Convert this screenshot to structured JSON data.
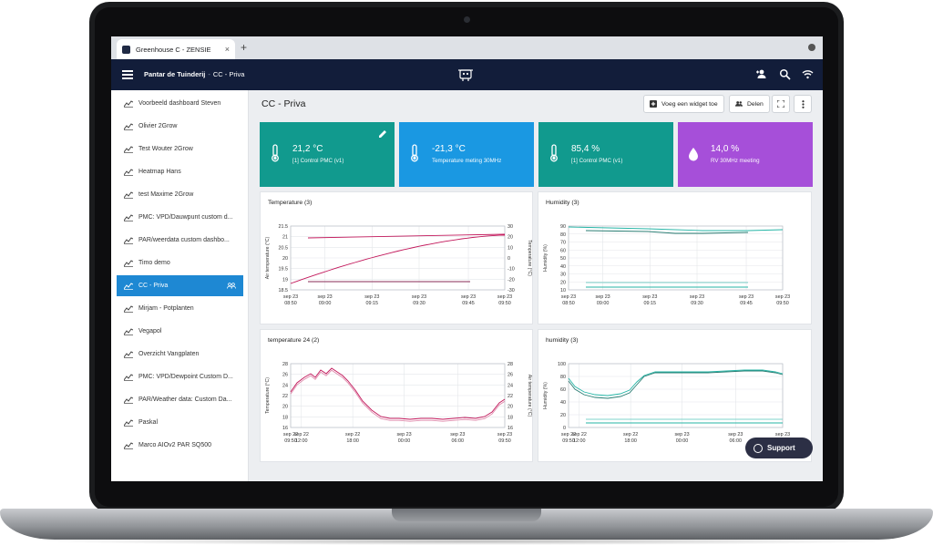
{
  "browser": {
    "tab_title": "Greenhouse C - ZENSIE",
    "tab_close": "×",
    "new_tab": "+"
  },
  "header": {
    "org": "Pantar de Tuinderij",
    "separator": "-",
    "dashboard": "CC - Priva"
  },
  "sidebar": {
    "items": [
      {
        "label": "Voorbeeld dashboard Steven"
      },
      {
        "label": "Olivier 2Grow"
      },
      {
        "label": "Test Wouter 2Grow"
      },
      {
        "label": "Heatmap Hans"
      },
      {
        "label": "test Maxime 2Grow"
      },
      {
        "label": "PMC: VPD/Dauwpunt custom d..."
      },
      {
        "label": "PAR/weerdata custom dashbo..."
      },
      {
        "label": "Timo demo"
      },
      {
        "label": "CC - Priva"
      },
      {
        "label": "Mirjam - Potplanten"
      },
      {
        "label": "Vegapol"
      },
      {
        "label": "Overzicht Vangplaten"
      },
      {
        "label": "PMC: VPD/Dewpoint Custom D..."
      },
      {
        "label": "PAR/Weather data: Custom Da..."
      },
      {
        "label": "Paskal"
      },
      {
        "label": "Marco AIOv2 PAR SQ500"
      }
    ],
    "active_index": 8
  },
  "main": {
    "title": "CC - Priva",
    "toolbar": {
      "add_widget": "Voeg een widget toe",
      "share": "Delen"
    },
    "stats": [
      {
        "value": "21,2 °C",
        "label": "[1] Control PMC (v1)",
        "color": "#119a8e",
        "icon": "thermometer-icon"
      },
      {
        "value": "-21,3 °C",
        "label": "Temperature meting 30MHz",
        "color": "#1a98e2",
        "icon": "thermometer-icon"
      },
      {
        "value": "85,4 %",
        "label": "[1] Control PMC (v1)",
        "color": "#119a8e",
        "icon": "thermometer-icon"
      },
      {
        "value": "14,0 %",
        "label": "RV 30MHz meeting",
        "color": "#a64fd9",
        "icon": "drop-icon"
      }
    ]
  },
  "charts": {
    "temp3": {
      "title": "Temperature (3)",
      "ylabel_left": "Air temperature (°C)",
      "ylabel_right": "Temperature (°C)",
      "yticks_left": [
        "21.5",
        "21",
        "20.5",
        "20",
        "19.5",
        "19",
        "18.5"
      ],
      "yticks_right": [
        "30",
        "20",
        "10",
        "0",
        "-10",
        "-20",
        "-30"
      ],
      "xticks": [
        {
          "l1": "sep 23",
          "l2": "08:50"
        },
        {
          "l1": "sep 23",
          "l2": "09:00"
        },
        {
          "l1": "sep 23",
          "l2": "09:15"
        },
        {
          "l1": "sep 23",
          "l2": "09:30"
        },
        {
          "l1": "sep 23",
          "l2": "09:45"
        },
        {
          "l1": "sep 23",
          "l2": "09:50"
        }
      ]
    },
    "hum3": {
      "title": "Humidity (3)",
      "ylabel_left": "Humidity (%)",
      "yticks_left": [
        "90",
        "80",
        "70",
        "60",
        "50",
        "40",
        "30",
        "20",
        "10"
      ],
      "xticks": [
        {
          "l1": "sep 23",
          "l2": "08:50"
        },
        {
          "l1": "sep 23",
          "l2": "09:00"
        },
        {
          "l1": "sep 23",
          "l2": "09:15"
        },
        {
          "l1": "sep 23",
          "l2": "09:30"
        },
        {
          "l1": "sep 23",
          "l2": "09:45"
        },
        {
          "l1": "sep 23",
          "l2": "09:50"
        }
      ]
    },
    "temp24": {
      "title": "temperature 24 (2)",
      "ylabel_left": "Temperature (°C)",
      "ylabel_right": "Air temperature (°C)",
      "yticks_left": [
        "28",
        "26",
        "24",
        "22",
        "20",
        "18",
        "16"
      ],
      "yticks_right": [
        "28",
        "26",
        "24",
        "22",
        "20",
        "18",
        "16"
      ],
      "xticks": [
        {
          "l1": "sep 22",
          "l2": "09:50"
        },
        {
          "l1": "sep 22",
          "l2": "12:00"
        },
        {
          "l1": "sep 22",
          "l2": "18:00"
        },
        {
          "l1": "sep 23",
          "l2": "00:00"
        },
        {
          "l1": "sep 23",
          "l2": "06:00"
        },
        {
          "l1": "sep 23",
          "l2": "09:50"
        }
      ]
    },
    "hum24": {
      "title": "humidity (3)",
      "ylabel_left": "Humidity (%)",
      "yticks_left": [
        "100",
        "80",
        "60",
        "40",
        "20",
        "0"
      ],
      "xticks": [
        {
          "l1": "sep 22",
          "l2": "09:50"
        },
        {
          "l1": "sep 22",
          "l2": "12:00"
        },
        {
          "l1": "sep 22",
          "l2": "18:00"
        },
        {
          "l1": "sep 23",
          "l2": "00:00"
        },
        {
          "l1": "sep 23",
          "l2": "06:00"
        },
        {
          "l1": "sep 23",
          "l2": "09:50"
        }
      ]
    }
  },
  "support": {
    "label": "Support"
  },
  "colors": {
    "appbar": "#121d3a",
    "active": "#1e88d3",
    "temp_line": "#c2185b",
    "hum_line": "#26b5a6"
  }
}
